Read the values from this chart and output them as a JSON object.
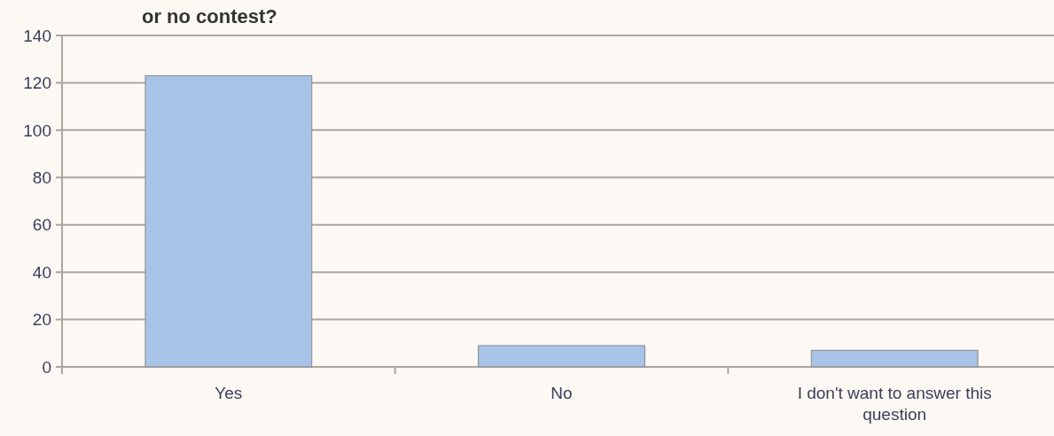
{
  "chart_data": {
    "type": "bar",
    "title": "or no contest?",
    "categories": [
      "Yes",
      "No",
      "I don't want to answer this question"
    ],
    "values": [
      123,
      9,
      7
    ],
    "color": "#a8c3e8",
    "ylim": [
      0,
      140
    ],
    "yticks": [
      0,
      20,
      40,
      60,
      80,
      100,
      120,
      140
    ],
    "grid": "y"
  }
}
